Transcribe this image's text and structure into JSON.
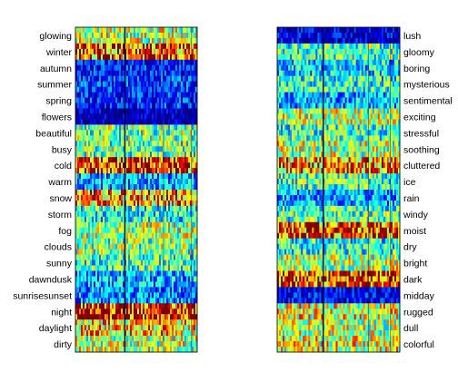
{
  "chart_data": [
    {
      "type": "heatmap",
      "rows": [
        "glowing",
        "winter",
        "autumn",
        "summer",
        "spring",
        "flowers",
        "beautiful",
        "busy",
        "cold",
        "warm",
        "snow",
        "storm",
        "fog",
        "clouds",
        "sunny",
        "dawndusk",
        "sunrisesunset",
        "night",
        "daylight",
        "dirty"
      ],
      "row_intensity": [
        0.55,
        0.82,
        0.15,
        0.18,
        0.16,
        0.06,
        0.5,
        0.48,
        0.85,
        0.3,
        0.72,
        0.4,
        0.55,
        0.5,
        0.45,
        0.3,
        0.25,
        0.92,
        0.65,
        0.55
      ],
      "label_side": "left",
      "colormap": "jet",
      "grid": false
    },
    {
      "type": "heatmap",
      "rows": [
        "lush",
        "gloomy",
        "boring",
        "mysterious",
        "sentimental",
        "exciting",
        "stressful",
        "soothing",
        "cluttered",
        "ice",
        "rain",
        "windy",
        "moist",
        "dry",
        "bright",
        "dark",
        "midday",
        "rugged",
        "dull",
        "colorful"
      ],
      "row_intensity": [
        0.1,
        0.45,
        0.35,
        0.4,
        0.3,
        0.55,
        0.45,
        0.55,
        0.75,
        0.45,
        0.3,
        0.45,
        0.82,
        0.4,
        0.55,
        0.85,
        0.12,
        0.6,
        0.55,
        0.6
      ],
      "label_side": "right",
      "colormap": "jet",
      "grid": false
    }
  ]
}
